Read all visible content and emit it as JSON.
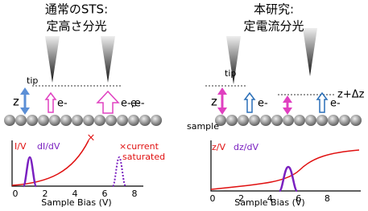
{
  "left": {
    "title": [
      "通常のSTS:",
      "定高さ分光"
    ],
    "tip": "tip",
    "z": "z",
    "e_tip1": "e-",
    "e_tip2": "e-,e-",
    "e_top": "e-",
    "plot": {
      "legend": [
        "I/V",
        "dI/dV"
      ],
      "marker": "×",
      "note": [
        "×current",
        "saturated"
      ],
      "xticks": [
        0,
        2,
        4,
        6,
        8
      ],
      "xlabel": "Sample Bias (V)"
    }
  },
  "right": {
    "title": [
      "本研究:",
      "定電流分光"
    ],
    "tip": "tip",
    "sample": "sample",
    "z": "z",
    "dz": "z+Δz",
    "e_tip1": "e-",
    "e_tip2": "e-",
    "plot": {
      "legend": [
        "z/V",
        "dz/dV"
      ],
      "xticks": [
        0,
        2,
        4,
        6,
        8
      ],
      "xlabel": "Sample Bias (V)"
    }
  }
}
